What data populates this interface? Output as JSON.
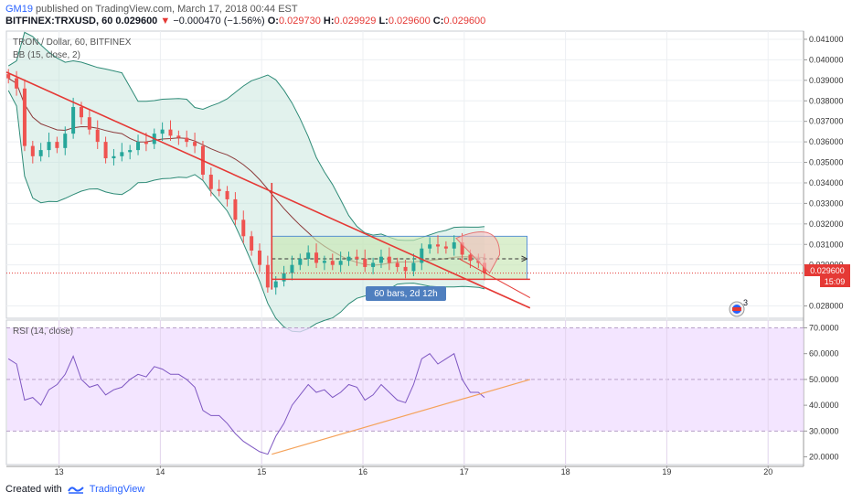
{
  "header": {
    "user": "GM19",
    "published": "published on TradingView.com, March 17, 2018 00:44 EST",
    "symbol": "BITFINEX:TRXUSD, 60",
    "last": "0.029600",
    "change": "−0.000470 (−1.56%)",
    "open_label": "O:",
    "open": "0.029730",
    "high_label": "H:",
    "high": "0.029929",
    "low_label": "L:",
    "low": "0.029600",
    "close_label": "C:",
    "close": "0.029600"
  },
  "main_pane": {
    "title": "TRON / Dollar, 60, BITFINEX",
    "indicator": "BB (15, close, 2)",
    "price_badge": "0.029600",
    "countdown_badge": "15:09",
    "range_label": "60 bars, 2d 12h",
    "alert_count": "3"
  },
  "rsi_pane": {
    "title": "RSI (14, close)"
  },
  "footer": {
    "created_with": "Created with",
    "brand": "TradingView"
  },
  "colors": {
    "up": "#26a69a",
    "down": "#ef5350",
    "trendline": "#e53935",
    "bb_band": "#2e8b77",
    "bb_basis": "#8b3a3a",
    "rsi_line": "#7e57c2",
    "rsi_trend": "#f5a25a",
    "range_fill": "#c8e6b4",
    "price_line": "#e53935"
  },
  "chart_data": [
    {
      "type": "candlestick",
      "title": "TRON / Dollar, 60, BITFINEX",
      "x_ticks": [
        "13",
        "14",
        "15",
        "16",
        "17",
        "18",
        "19",
        "20"
      ],
      "y_ticks": [
        "0.041000",
        "0.040000",
        "0.039000",
        "0.038000",
        "0.037000",
        "0.036000",
        "0.035000",
        "0.034000",
        "0.033000",
        "0.032000",
        "0.031000",
        "0.030000",
        "0.028000"
      ],
      "ylim": [
        0.0274,
        0.0414
      ],
      "xlim": [
        12.48,
        20.35
      ],
      "close_series": [
        [
          12.5,
          0.0391
        ],
        [
          12.58,
          0.0386
        ],
        [
          12.66,
          0.0358
        ],
        [
          12.74,
          0.0353
        ],
        [
          12.82,
          0.0356
        ],
        [
          12.9,
          0.036
        ],
        [
          12.98,
          0.0357
        ],
        [
          13.06,
          0.0364
        ],
        [
          13.14,
          0.0377
        ],
        [
          13.22,
          0.0372
        ],
        [
          13.3,
          0.0366
        ],
        [
          13.38,
          0.036
        ],
        [
          13.46,
          0.0352
        ],
        [
          13.54,
          0.0353
        ],
        [
          13.62,
          0.0355
        ],
        [
          13.7,
          0.0356
        ],
        [
          13.78,
          0.036
        ],
        [
          13.86,
          0.0359
        ],
        [
          13.94,
          0.0364
        ],
        [
          14.02,
          0.0366
        ],
        [
          14.1,
          0.0363
        ],
        [
          14.18,
          0.0362
        ],
        [
          14.26,
          0.036
        ],
        [
          14.34,
          0.0358
        ],
        [
          14.42,
          0.0344
        ],
        [
          14.5,
          0.0337
        ],
        [
          14.58,
          0.0336
        ],
        [
          14.66,
          0.0332
        ],
        [
          14.74,
          0.0322
        ],
        [
          14.82,
          0.0314
        ],
        [
          14.9,
          0.0307
        ],
        [
          14.98,
          0.03
        ],
        [
          15.06,
          0.0289
        ],
        [
          15.14,
          0.0292
        ],
        [
          15.22,
          0.0296
        ],
        [
          15.3,
          0.03
        ],
        [
          15.38,
          0.0303
        ],
        [
          15.46,
          0.0306
        ],
        [
          15.54,
          0.0301
        ],
        [
          15.62,
          0.0302
        ],
        [
          15.7,
          0.03
        ],
        [
          15.78,
          0.0302
        ],
        [
          15.86,
          0.0304
        ],
        [
          15.94,
          0.0303
        ],
        [
          16.02,
          0.0299
        ],
        [
          16.1,
          0.0301
        ],
        [
          16.18,
          0.0304
        ],
        [
          16.26,
          0.0301
        ],
        [
          16.34,
          0.0299
        ],
        [
          16.42,
          0.0297
        ],
        [
          16.5,
          0.0301
        ],
        [
          16.58,
          0.0308
        ],
        [
          16.66,
          0.031
        ],
        [
          16.74,
          0.0309
        ],
        [
          16.82,
          0.0308
        ],
        [
          16.9,
          0.0311
        ],
        [
          16.98,
          0.0305
        ],
        [
          17.06,
          0.0302
        ],
        [
          17.14,
          0.0301
        ],
        [
          17.2,
          0.0296
        ]
      ],
      "trendlines": [
        {
          "name": "descending",
          "from": [
            12.48,
            0.0394
          ],
          "to": [
            17.65,
            0.0279
          ]
        },
        {
          "name": "support",
          "from": [
            15.1,
            0.0293
          ],
          "to": [
            17.65,
            0.0293
          ]
        },
        {
          "name": "vertical",
          "from": [
            15.1,
            0.034
          ],
          "to": [
            15.1,
            0.0288
          ]
        }
      ],
      "measured_range": {
        "x": [
          15.1,
          17.62
        ],
        "y": [
          0.0293,
          0.0314
        ],
        "target": 0.0303,
        "label": "60 bars, 2d 12h"
      },
      "current_price": 0.0296
    },
    {
      "type": "line",
      "title": "RSI (14, close)",
      "y_ticks": [
        "70.0000",
        "60.0000",
        "50.0000",
        "40.0000",
        "30.0000",
        "20.0000"
      ],
      "ylim": [
        17,
        73
      ],
      "band": [
        30,
        70
      ],
      "values": [
        [
          12.5,
          58
        ],
        [
          12.58,
          56
        ],
        [
          12.66,
          42
        ],
        [
          12.74,
          43
        ],
        [
          12.82,
          40
        ],
        [
          12.9,
          46
        ],
        [
          12.98,
          48
        ],
        [
          13.06,
          52
        ],
        [
          13.14,
          59
        ],
        [
          13.22,
          50
        ],
        [
          13.3,
          47
        ],
        [
          13.38,
          48
        ],
        [
          13.46,
          44
        ],
        [
          13.54,
          46
        ],
        [
          13.62,
          47
        ],
        [
          13.7,
          50
        ],
        [
          13.78,
          52
        ],
        [
          13.86,
          51
        ],
        [
          13.94,
          55
        ],
        [
          14.02,
          54
        ],
        [
          14.1,
          52
        ],
        [
          14.18,
          52
        ],
        [
          14.26,
          50
        ],
        [
          14.34,
          47
        ],
        [
          14.42,
          38
        ],
        [
          14.5,
          36
        ],
        [
          14.58,
          36
        ],
        [
          14.66,
          33
        ],
        [
          14.74,
          29
        ],
        [
          14.82,
          26
        ],
        [
          14.9,
          24
        ],
        [
          14.98,
          22
        ],
        [
          15.06,
          21
        ],
        [
          15.14,
          28
        ],
        [
          15.22,
          33
        ],
        [
          15.3,
          40
        ],
        [
          15.38,
          44
        ],
        [
          15.46,
          48
        ],
        [
          15.54,
          45
        ],
        [
          15.62,
          46
        ],
        [
          15.7,
          43
        ],
        [
          15.78,
          45
        ],
        [
          15.86,
          48
        ],
        [
          15.94,
          47
        ],
        [
          16.02,
          42
        ],
        [
          16.1,
          44
        ],
        [
          16.18,
          48
        ],
        [
          16.26,
          45
        ],
        [
          16.34,
          42
        ],
        [
          16.42,
          41
        ],
        [
          16.5,
          48
        ],
        [
          16.58,
          58
        ],
        [
          16.66,
          60
        ],
        [
          16.74,
          56
        ],
        [
          16.82,
          58
        ],
        [
          16.9,
          60
        ],
        [
          16.98,
          50
        ],
        [
          17.06,
          45
        ],
        [
          17.14,
          45
        ],
        [
          17.2,
          43
        ]
      ],
      "trendline": {
        "from": [
          15.1,
          21
        ],
        "to": [
          17.65,
          50
        ]
      }
    }
  ]
}
